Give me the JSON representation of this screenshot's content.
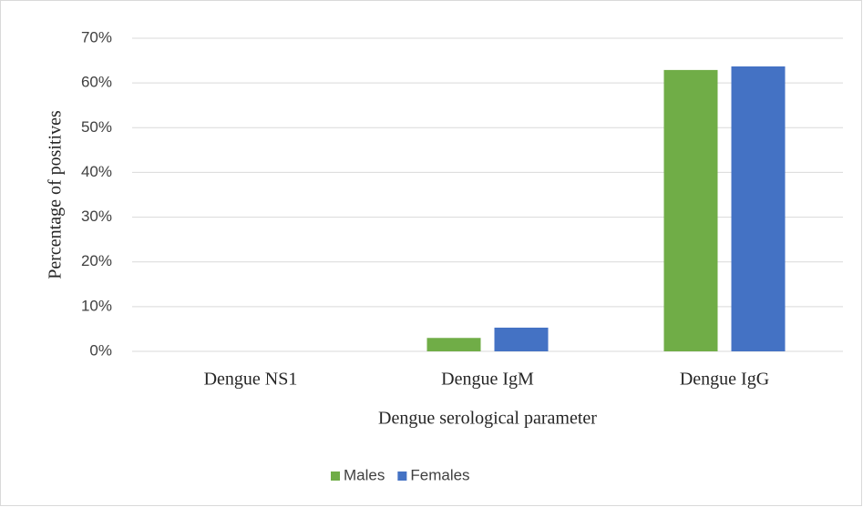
{
  "chart_data": {
    "type": "bar",
    "x_label": "Dengue serological parameter",
    "y_label": "Percentage of positives",
    "categories": [
      "Dengue NS1",
      "Dengue IgM",
      "Dengue IgG"
    ],
    "series": [
      {
        "name": "Males",
        "color": "#70ad47",
        "values": [
          0,
          3,
          62.9
        ]
      },
      {
        "name": "Females",
        "color": "#4472c4",
        "values": [
          0,
          5.3,
          63.7
        ]
      }
    ],
    "ylim": [
      0,
      70
    ],
    "yticks": [
      {
        "value": 0,
        "label": "0%"
      },
      {
        "value": 10,
        "label": "10%"
      },
      {
        "value": 20,
        "label": "20%"
      },
      {
        "value": 30,
        "label": "30%"
      },
      {
        "value": 40,
        "label": "40%"
      },
      {
        "value": 50,
        "label": "50%"
      },
      {
        "value": 60,
        "label": "60%"
      },
      {
        "value": 70,
        "label": "70%"
      }
    ],
    "grid": true,
    "legend": "bottom"
  }
}
